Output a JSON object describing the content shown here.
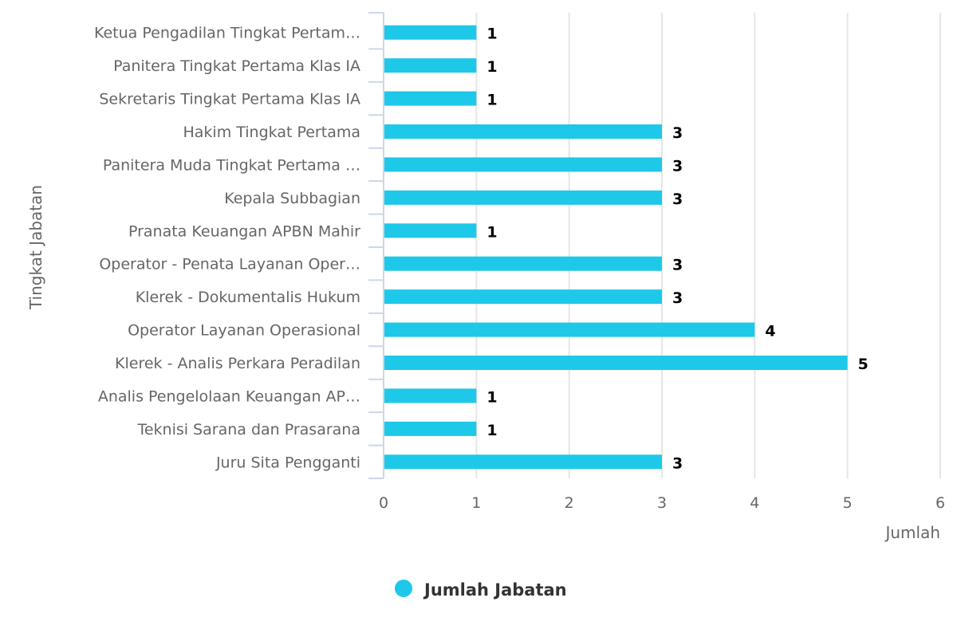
{
  "chart_data": {
    "type": "bar",
    "orientation": "horizontal",
    "categories": [
      "Ketua Pengadilan Tingkat Pertam…",
      "Panitera Tingkat Pertama Klas IA",
      "Sekretaris Tingkat Pertama Klas IA",
      "Hakim Tingkat Pertama",
      "Panitera Muda Tingkat Pertama …",
      "Kepala Subbagian",
      "Pranata Keuangan APBN Mahir",
      "Operator - Penata Layanan Oper…",
      "Klerek - Dokumentalis Hukum",
      "Operator Layanan Operasional",
      "Klerek - Analis Perkara Peradilan",
      "Analis Pengelolaan Keuangan AP…",
      "Teknisi Sarana dan Prasarana",
      "Juru Sita Pengganti"
    ],
    "series": [
      {
        "name": "Jumlah Jabatan",
        "values": [
          1,
          1,
          1,
          3,
          3,
          3,
          1,
          3,
          3,
          4,
          5,
          1,
          1,
          3
        ],
        "color": "#1ec8e8"
      }
    ],
    "xlabel": "Tingkat Jabatan",
    "ylabel": "Jumlah",
    "ylim": [
      0,
      6
    ],
    "ticks": [
      "0",
      "1",
      "2",
      "3",
      "4",
      "5",
      "6"
    ],
    "grid": true,
    "data_labels": true,
    "legend": {
      "position": "bottom-center",
      "label": "Jumlah Jabatan"
    }
  }
}
